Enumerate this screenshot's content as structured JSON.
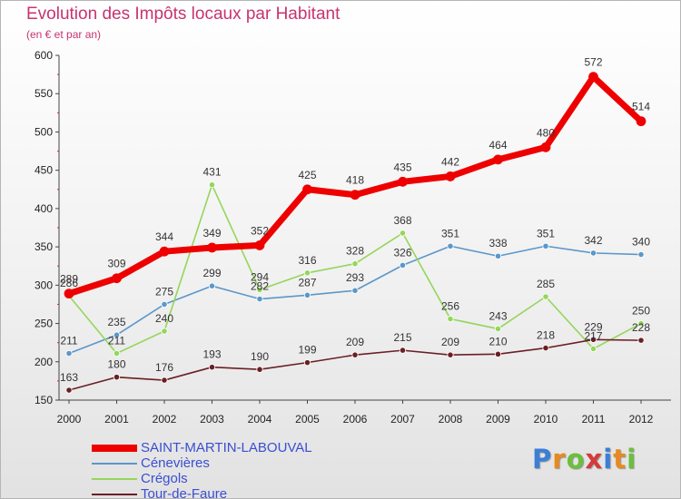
{
  "header": {
    "title": "Evolution des Impôts locaux par Habitant",
    "subtitle": "(en € et par an)"
  },
  "brand": {
    "logo_text": "Proxiti",
    "letter_colors": [
      "#3a7fd6",
      "#e8891f",
      "#6abf3c",
      "#d63a3a",
      "#3a7fd6",
      "#e8891f",
      "#6abf3c"
    ]
  },
  "chart_data": {
    "type": "line",
    "title": "Evolution des Impôts locaux par Habitant",
    "subtitle": "(en € et par an)",
    "xlabel": "",
    "ylabel": "",
    "x": [
      "2000",
      "2001",
      "2002",
      "2003",
      "2004",
      "2005",
      "2006",
      "2007",
      "2008",
      "2009",
      "2010",
      "2011",
      "2012"
    ],
    "ylim": [
      150,
      600
    ],
    "yticks": [
      150,
      200,
      250,
      300,
      350,
      400,
      450,
      500,
      550,
      600
    ],
    "grid": false,
    "legend_position": "bottom-left",
    "series": [
      {
        "name": "SAINT-MARTIN-LABOUVAL",
        "color": "#ee0000",
        "values": [
          289,
          309,
          344,
          349,
          352,
          425,
          418,
          435,
          442,
          464,
          480,
          572,
          514
        ]
      },
      {
        "name": "Cénevières",
        "color": "#5b97c9",
        "values": [
          211,
          235,
          275,
          299,
          282,
          287,
          293,
          326,
          351,
          338,
          351,
          342,
          340
        ]
      },
      {
        "name": "Crégols",
        "color": "#94d65a",
        "values": [
          286,
          211,
          240,
          431,
          294,
          316,
          328,
          368,
          256,
          243,
          285,
          217,
          250
        ]
      },
      {
        "name": "Tour-de-Faure",
        "color": "#6a1f24",
        "values": [
          163,
          180,
          176,
          193,
          190,
          199,
          209,
          215,
          209,
          210,
          218,
          229,
          228
        ]
      }
    ]
  }
}
